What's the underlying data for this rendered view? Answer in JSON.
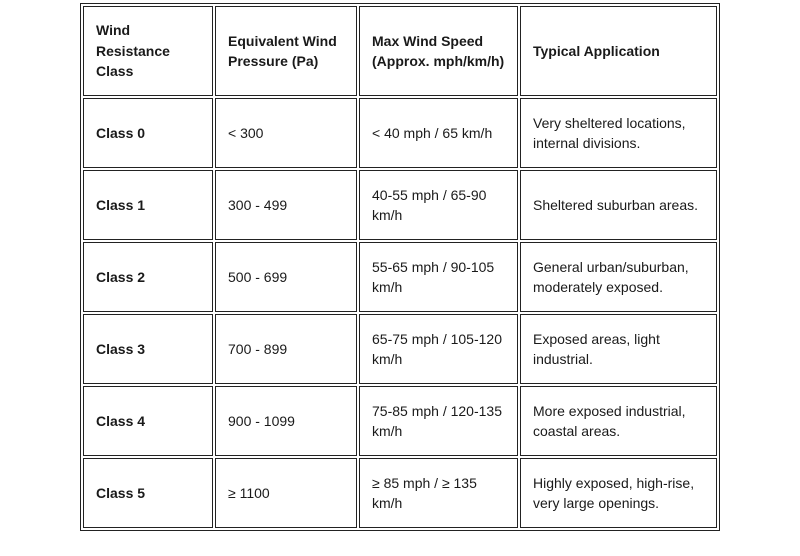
{
  "table": {
    "headers": [
      "Wind Resistance Class",
      "Equivalent Wind Pressure (Pa)",
      "Max Wind Speed (Approx. mph/km/h)",
      "Typical Application"
    ],
    "rows": [
      [
        "Class 0",
        "< 300",
        "< 40 mph / 65 km/h",
        "Very sheltered locations, internal divisions."
      ],
      [
        "Class 1",
        "300 - 499",
        "40-55 mph / 65-90 km/h",
        "Sheltered suburban areas."
      ],
      [
        "Class 2",
        "500 - 699",
        "55-65 mph / 90-105 km/h",
        "General urban/suburban, moderately exposed."
      ],
      [
        "Class 3",
        "700 - 899",
        "65-75 mph / 105-120 km/h",
        "Exposed areas, light industrial."
      ],
      [
        "Class 4",
        "900 - 1099",
        "75-85 mph / 120-135 km/h",
        "More exposed industrial, coastal areas."
      ],
      [
        "Class 5",
        "≥ 1100",
        "≥ 85 mph / ≥ 135 km/h",
        "Highly exposed, high-rise, very large openings."
      ]
    ]
  }
}
